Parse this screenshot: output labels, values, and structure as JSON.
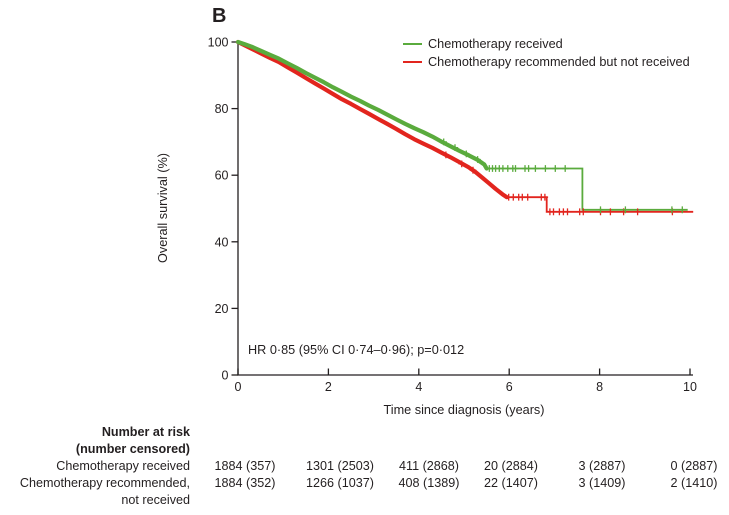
{
  "panel_label": "B",
  "chart_data": {
    "type": "line",
    "subtype": "kaplan-meier",
    "title": "",
    "xlabel": "Time since diagnosis (years)",
    "ylabel": "Overall survival (%)",
    "xlim": [
      0,
      10
    ],
    "ylim": [
      0,
      100
    ],
    "x_ticks": [
      0,
      2,
      4,
      6,
      8,
      10
    ],
    "y_ticks": [
      0,
      20,
      40,
      60,
      80,
      100
    ],
    "grid": false,
    "legend_position": "top-right",
    "annotation": "HR 0·85 (95% CI 0·74–0·96); p=0·012",
    "axis_color": "#231f20",
    "series": [
      {
        "name": "Chemotherapy recommended but not received",
        "color": "#e2251e",
        "dense_points": [
          [
            0,
            100
          ],
          [
            0.15,
            99.0
          ],
          [
            0.3,
            98.0
          ],
          [
            0.5,
            96.6
          ],
          [
            0.7,
            95.3
          ],
          [
            0.9,
            94.0
          ],
          [
            1.1,
            92.4
          ],
          [
            1.3,
            90.8
          ],
          [
            1.5,
            89.2
          ],
          [
            1.7,
            87.6
          ],
          [
            1.9,
            86.0
          ],
          [
            2.1,
            84.4
          ],
          [
            2.3,
            82.8
          ],
          [
            2.5,
            81.4
          ],
          [
            2.7,
            79.9
          ],
          [
            2.9,
            78.4
          ],
          [
            3.1,
            76.9
          ],
          [
            3.3,
            75.4
          ],
          [
            3.5,
            73.9
          ],
          [
            3.7,
            72.3
          ],
          [
            3.9,
            70.8
          ],
          [
            4.1,
            69.5
          ],
          [
            4.3,
            68.2
          ],
          [
            4.5,
            66.8
          ],
          [
            4.7,
            65.4
          ],
          [
            4.9,
            63.9
          ],
          [
            5.1,
            62.4
          ],
          [
            5.25,
            61.0
          ],
          [
            5.4,
            59.3
          ],
          [
            5.55,
            57.6
          ],
          [
            5.7,
            55.9
          ],
          [
            5.85,
            54.3
          ],
          [
            5.95,
            53.4
          ]
        ],
        "tail_points": [
          [
            5.95,
            53.4
          ],
          [
            6.83,
            53.4
          ],
          [
            6.83,
            49.0
          ],
          [
            10.07,
            49.0
          ]
        ],
        "censors": [
          [
            4.6,
            66.1
          ],
          [
            4.95,
            63.4
          ],
          [
            5.2,
            61.5
          ],
          [
            5.99,
            53.4
          ],
          [
            6.09,
            53.4
          ],
          [
            6.21,
            53.4
          ],
          [
            6.29,
            53.4
          ],
          [
            6.41,
            53.4
          ],
          [
            6.71,
            53.4
          ],
          [
            6.79,
            53.4
          ],
          [
            6.9,
            49.0
          ],
          [
            6.98,
            49.0
          ],
          [
            7.11,
            49.0
          ],
          [
            7.2,
            49.0
          ],
          [
            7.29,
            49.0
          ],
          [
            7.56,
            49.0
          ],
          [
            7.64,
            49.0
          ],
          [
            8.02,
            49.0
          ],
          [
            8.24,
            49.0
          ],
          [
            8.53,
            49.0
          ],
          [
            8.84,
            49.0
          ],
          [
            9.61,
            49.0
          ]
        ]
      },
      {
        "name": "Chemotherapy received",
        "color": "#5aab3d",
        "dense_points": [
          [
            0,
            100
          ],
          [
            0.15,
            99.3
          ],
          [
            0.3,
            98.6
          ],
          [
            0.5,
            97.4
          ],
          [
            0.7,
            96.2
          ],
          [
            0.9,
            95.0
          ],
          [
            1.1,
            93.6
          ],
          [
            1.3,
            92.2
          ],
          [
            1.5,
            90.7
          ],
          [
            1.7,
            89.3
          ],
          [
            1.9,
            87.9
          ],
          [
            2.1,
            86.4
          ],
          [
            2.3,
            85.0
          ],
          [
            2.5,
            83.6
          ],
          [
            2.7,
            82.3
          ],
          [
            2.9,
            80.9
          ],
          [
            3.1,
            79.6
          ],
          [
            3.3,
            78.2
          ],
          [
            3.5,
            76.8
          ],
          [
            3.7,
            75.4
          ],
          [
            3.9,
            74.1
          ],
          [
            4.1,
            72.9
          ],
          [
            4.3,
            71.6
          ],
          [
            4.5,
            70.1
          ],
          [
            4.7,
            68.7
          ],
          [
            4.9,
            67.3
          ],
          [
            5.1,
            66.0
          ],
          [
            5.3,
            64.6
          ],
          [
            5.45,
            63.2
          ],
          [
            5.5,
            62.0
          ]
        ],
        "tail_points": [
          [
            5.5,
            62.0
          ],
          [
            7.62,
            62.0
          ],
          [
            7.62,
            49.6
          ],
          [
            9.95,
            49.6
          ]
        ],
        "censors": [
          [
            4.55,
            70.0
          ],
          [
            4.8,
            68.3
          ],
          [
            5.05,
            66.4
          ],
          [
            5.3,
            64.7
          ],
          [
            5.56,
            62.0
          ],
          [
            5.63,
            62.0
          ],
          [
            5.7,
            62.0
          ],
          [
            5.78,
            62.0
          ],
          [
            5.86,
            62.0
          ],
          [
            5.97,
            62.0
          ],
          [
            6.08,
            62.0
          ],
          [
            6.14,
            62.0
          ],
          [
            6.35,
            62.0
          ],
          [
            6.43,
            62.0
          ],
          [
            6.58,
            62.0
          ],
          [
            6.8,
            62.0
          ],
          [
            7.02,
            62.0
          ],
          [
            7.24,
            62.0
          ],
          [
            8.02,
            49.6
          ],
          [
            8.57,
            49.6
          ],
          [
            9.6,
            49.6
          ],
          [
            9.83,
            49.6
          ]
        ]
      }
    ],
    "legend_order": [
      1,
      0
    ]
  },
  "risk_table": {
    "header_line1": "Number at risk",
    "header_line2": "(number censored)",
    "rows": [
      {
        "label_lines": [
          "Chemotherapy received"
        ],
        "values": [
          "1884 (357)",
          "1301 (2503)",
          "411 (2868)",
          "20 (2884)",
          "3 (2887)",
          "0 (2887)"
        ]
      },
      {
        "label_lines": [
          "Chemotherapy recommended,",
          "not received"
        ],
        "values": [
          "1884 (352)",
          "1266 (1037)",
          "408 (1389)",
          "22 (1407)",
          "3 (1409)",
          "2 (1410)"
        ]
      }
    ]
  }
}
